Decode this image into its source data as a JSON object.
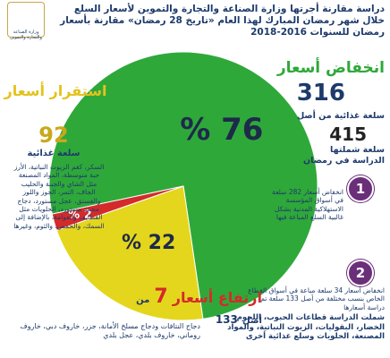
{
  "chart_data": {
    "type": "pie",
    "title": "دراسة مقارنة أجرتها وزارة الصناعة والتجارة والتموين لأسعار السلع خلال شهر رمضان المبارك لهذا العام «تاريخ 28 رمضان» مقارنة بأسعار رمضان للسنوات 2016-2018",
    "logo_caption": "وزارة الصناعة والتجارة والتموين",
    "categories": [
      "انخفاض أسعار",
      "استقرار أسعار",
      "ارتفاع أسعار"
    ],
    "values": [
      76,
      22,
      2
    ],
    "value_labels": [
      "% 76",
      "% 22",
      "% 2"
    ],
    "colors": [
      "#2fa83a",
      "#e4d61c",
      "#d42a2a"
    ],
    "decrease": {
      "count": 316,
      "of_text": "سلعة غذائية من أصل",
      "total": 415,
      "total_text": "سلعة شملتها الدراسة في رمضان"
    },
    "stable": {
      "count": 92,
      "unit": "سلعة غذائية",
      "items": "السكر، كغم الزيوت النباتية، الأرز حبة متوسطة، المواد المصنعة مثل الشاي والجبنة والحليب الجاف، التمر، الجوز واللوز والفستق، عجل مستورد، دجاج مجمد مستورد، الحلويات مثل القطايف والعوامة، بالإضافة إلى السمك، والحمص، والثوم، وغيرها"
    },
    "rise": {
      "count": 7,
      "of_text": "من أصل",
      "total": 133,
      "items": "دجاج النتافات ودجاج مسلخ الأمانة، جزر، خاروف دبي، خاروف روماني، خاروف بلدي، عجل بلدي"
    },
    "notes": [
      {
        "number": 1,
        "text": "انخفاض أسعار 282 سلعة في أسواق المؤسسة الاستهلاكية المدنية بشكل غالبية السلع المباعة فيها"
      },
      {
        "number": 2,
        "text": "انخفاض أسعار 34 سلعة مباعة في أسواق القطاع الخاص بنسب مختلفة من أصل 133 سلعة تم دراسة أسعارها"
      }
    ],
    "footer": "شملت الدراسة قطاعات الحبوب، اللحوم، الخضار، البقوليات، الزيوت النباتية، والمواد المصنعة، الحلويات وسلع غذائية أخرى"
  }
}
